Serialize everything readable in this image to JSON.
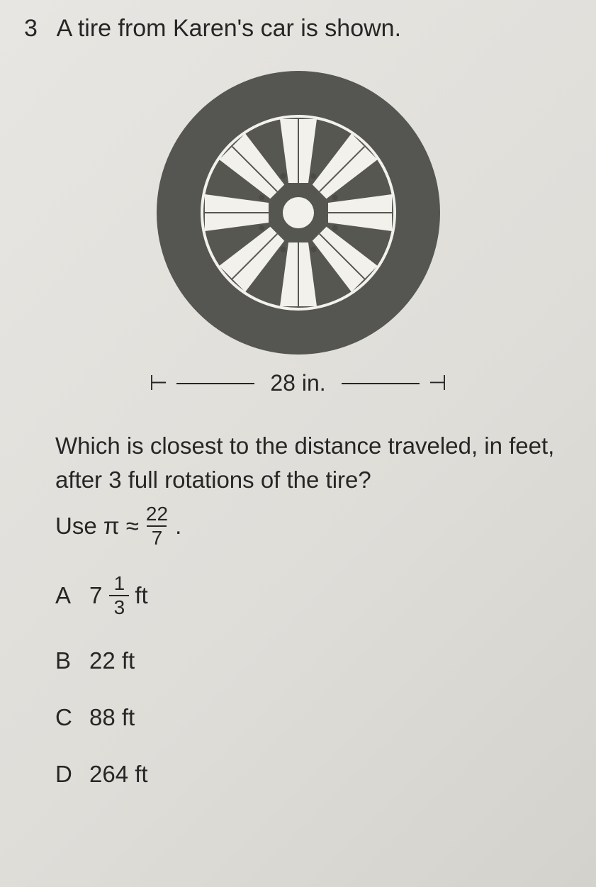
{
  "question": {
    "number": "3",
    "prompt_line1": "A tire from Karen's car is shown.",
    "diameter_label": "28 in.",
    "body": "Which is closest to the distance traveled, in feet, after 3 full rotations of the tire?",
    "pi_prefix": "Use π ≈",
    "pi_numerator": "22",
    "pi_denominator": "7",
    "pi_suffix": "."
  },
  "choices": [
    {
      "letter": "A",
      "type": "mixed",
      "whole": "7",
      "num": "1",
      "den": "3",
      "unit": "ft"
    },
    {
      "letter": "B",
      "type": "plain",
      "text": "22 ft"
    },
    {
      "letter": "C",
      "type": "plain",
      "text": "88 ft"
    },
    {
      "letter": "D",
      "type": "plain",
      "text": "264 ft"
    }
  ],
  "tire": {
    "outer_radius": 200,
    "inner_radius": 136,
    "hub_outer": 40,
    "hub_inner": 22,
    "spoke_count": 8,
    "tire_color": "#555651",
    "rim_bg": "#575752",
    "spoke_color": "#f2f1ec",
    "hub_color": "#565651",
    "bolt_color": "#4a4a46",
    "bolt_radius": 4,
    "bolt_orbit": 56
  }
}
